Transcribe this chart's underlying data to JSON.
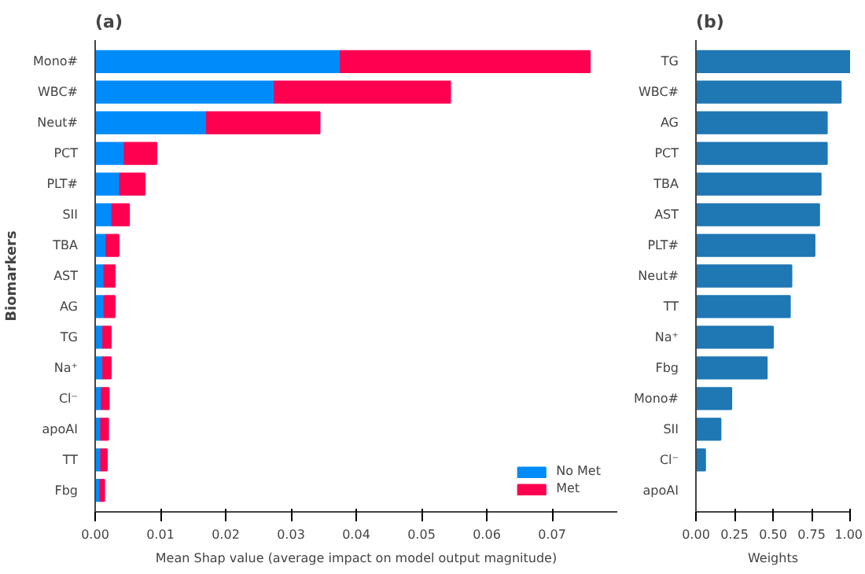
{
  "chart_data": [
    {
      "type": "bar",
      "title": "(a)",
      "orientation": "horizontal",
      "stacked": true,
      "xlabel": "Mean Shap value (average impact on model output magnitude)",
      "ylabel": "Biomarkers",
      "categories": [
        "Mono#",
        "WBC#",
        "Neut#",
        "PCT",
        "PLT#",
        "SII",
        "TBA",
        "AST",
        "AG",
        "TG",
        "Na⁺",
        "Cl⁻",
        "apoAI",
        "TT",
        "Fbg"
      ],
      "series": [
        {
          "name": "No Met",
          "color": "#008bfb",
          "values": [
            0.0376,
            0.0275,
            0.0171,
            0.0045,
            0.0038,
            0.0026,
            0.0017,
            0.0014,
            0.0014,
            0.0012,
            0.0012,
            0.001,
            0.0009,
            0.0009,
            0.0008
          ]
        },
        {
          "name": "Met",
          "color": "#ff0051",
          "values": [
            0.0382,
            0.0269,
            0.0173,
            0.0049,
            0.0038,
            0.0026,
            0.0019,
            0.0016,
            0.0016,
            0.0012,
            0.0012,
            0.0011,
            0.0011,
            0.0009,
            0.0006
          ]
        }
      ],
      "xlim": [
        0,
        0.08
      ],
      "xticks": [
        {
          "value": 0,
          "label": "0.00"
        },
        0.01,
        0.02,
        0.03,
        0.04,
        0.05,
        0.06,
        0.07
      ],
      "grid": false,
      "legend": "bottom right"
    },
    {
      "type": "bar",
      "title": "(b)",
      "orientation": "horizontal",
      "xlabel": "Weights",
      "categories": [
        "TG",
        "WBC#",
        "AG",
        "PCT",
        "TBA",
        "AST",
        "PLT#",
        "Neut#",
        "TT",
        "Na⁺",
        "Fbg",
        "Mono#",
        "SII",
        "Cl⁻",
        "apoAI"
      ],
      "series": [
        {
          "color": "#1f77b4",
          "values": [
            1.0,
            0.94,
            0.85,
            0.85,
            0.81,
            0.8,
            0.77,
            0.62,
            0.61,
            0.5,
            0.46,
            0.23,
            0.16,
            0.06,
            0
          ]
        }
      ],
      "xlim": [
        0,
        1.0
      ],
      "xticks": [
        {
          "value": 0,
          "label": "0.00"
        },
        {
          "value": 0.25,
          "label": "0.25"
        },
        {
          "value": 0.5,
          "label": "0.50"
        },
        {
          "value": 0.75,
          "label": "0.75"
        },
        {
          "value": 1,
          "label": "1.00"
        }
      ],
      "grid": false
    }
  ]
}
